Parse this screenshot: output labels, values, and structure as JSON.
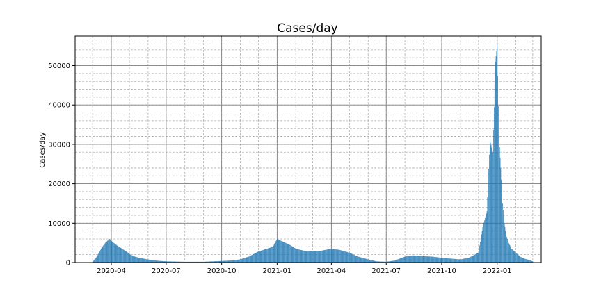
{
  "chart_data": {
    "type": "bar",
    "title": "Cases/day",
    "xlabel": "",
    "ylabel": "Cases/day",
    "x_range": [
      "2020-02-01",
      "2022-03-15"
    ],
    "ylim": [
      0,
      57500
    ],
    "yticks": [
      0,
      10000,
      20000,
      30000,
      40000,
      50000
    ],
    "ytick_labels": [
      "0",
      "10000",
      "20000",
      "30000",
      "40000",
      "50000"
    ],
    "xticks": [
      "2020-04-01",
      "2020-07-01",
      "2020-10-01",
      "2021-01-01",
      "2021-04-01",
      "2021-07-01",
      "2021-10-01",
      "2022-01-01"
    ],
    "xtick_labels": [
      "2020-04",
      "2020-07",
      "2020-10",
      "2021-01",
      "2021-04",
      "2021-07",
      "2021-10",
      "2022-01"
    ],
    "grid": {
      "major": true,
      "minor": true
    },
    "bar_color": "#1f77b4",
    "series": [
      {
        "x": [
          "2020-03-01",
          "2020-03-08",
          "2020-03-15",
          "2020-03-22",
          "2020-03-29",
          "2020-04-05",
          "2020-04-12",
          "2020-04-19",
          "2020-04-26",
          "2020-05-03",
          "2020-05-10",
          "2020-05-17",
          "2020-05-24",
          "2020-05-31",
          "2020-06-14",
          "2020-07-01",
          "2020-08-01",
          "2020-09-01",
          "2020-10-01",
          "2020-10-15",
          "2020-11-01",
          "2020-11-15",
          "2020-12-01",
          "2020-12-15",
          "2020-12-25",
          "2021-01-01",
          "2021-01-08",
          "2021-01-15",
          "2021-01-22",
          "2021-02-01",
          "2021-02-15",
          "2021-03-01",
          "2021-03-15",
          "2021-04-01",
          "2021-04-15",
          "2021-05-01",
          "2021-05-15",
          "2021-06-01",
          "2021-06-15",
          "2021-07-01",
          "2021-07-15",
          "2021-08-01",
          "2021-08-15",
          "2021-09-01",
          "2021-09-15",
          "2021-10-01",
          "2021-10-15",
          "2021-11-01",
          "2021-11-15",
          "2021-12-01",
          "2021-12-08",
          "2021-12-15",
          "2021-12-20",
          "2021-12-25",
          "2021-12-29",
          "2022-01-01",
          "2022-01-04",
          "2022-01-07",
          "2022-01-10",
          "2022-01-13",
          "2022-01-16",
          "2022-01-20",
          "2022-01-25",
          "2022-02-01",
          "2022-02-08",
          "2022-02-15",
          "2022-02-22",
          "2022-03-01"
        ],
        "values": [
          200,
          1500,
          3500,
          5000,
          6000,
          5000,
          4200,
          3500,
          2800,
          2000,
          1500,
          1200,
          1000,
          800,
          500,
          300,
          200,
          200,
          400,
          500,
          800,
          1500,
          2800,
          3500,
          4000,
          6000,
          5500,
          5000,
          4500,
          3500,
          3000,
          2800,
          3000,
          3500,
          3200,
          2500,
          1500,
          800,
          300,
          200,
          500,
          1500,
          1800,
          1600,
          1500,
          1200,
          1000,
          800,
          1200,
          2500,
          9000,
          13000,
          31000,
          28000,
          51000,
          55000,
          32000,
          24000,
          15000,
          10000,
          7000,
          5000,
          3500,
          2500,
          1500,
          1000,
          700,
          300
        ]
      }
    ]
  }
}
